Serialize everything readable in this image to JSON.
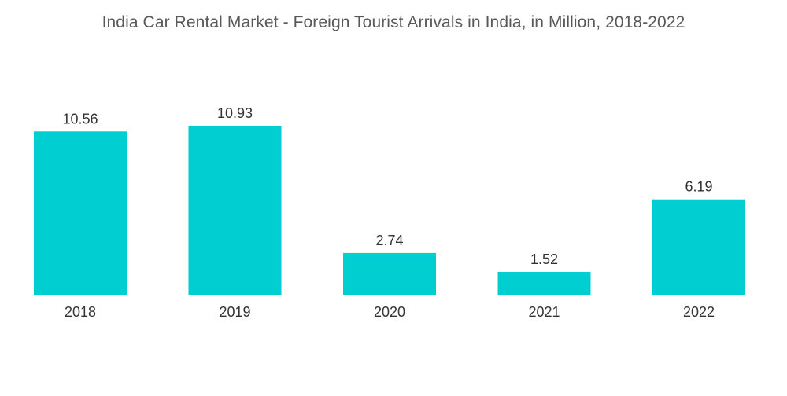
{
  "chart_data": {
    "type": "bar",
    "title": "India Car Rental Market - Foreign Tourist Arrivals in India, in Million, 2018-2022",
    "categories": [
      "2018",
      "2019",
      "2020",
      "2021",
      "2022"
    ],
    "values": [
      10.56,
      10.93,
      2.74,
      1.52,
      6.19
    ],
    "value_labels": [
      "10.56",
      "10.93",
      "2.74",
      "1.52",
      "6.19"
    ],
    "xlabel": "",
    "ylabel": "",
    "ylim": [
      0,
      10.93
    ],
    "grid": false,
    "legend": "none",
    "bar_color": "#00CED1"
  }
}
